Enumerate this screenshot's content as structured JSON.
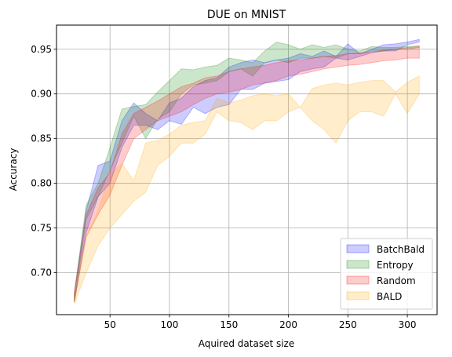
{
  "chart_data": {
    "type": "area",
    "title": "DUE on MNIST",
    "xlabel": "Aquired dataset size",
    "ylabel": "Accuracy",
    "xlim": [
      5,
      325
    ],
    "ylim": [
      0.653,
      0.977
    ],
    "xticks": [
      50,
      100,
      150,
      200,
      250,
      300
    ],
    "yticks": [
      0.7,
      0.75,
      0.8,
      0.85,
      0.9,
      0.95
    ],
    "ytick_labels": [
      "0.70",
      "0.75",
      "0.80",
      "0.85",
      "0.90",
      "0.95"
    ],
    "grid": true,
    "legend_position": "lower-right",
    "x": [
      20,
      30,
      40,
      50,
      60,
      70,
      80,
      90,
      100,
      110,
      120,
      130,
      140,
      150,
      160,
      170,
      180,
      190,
      200,
      210,
      220,
      230,
      240,
      250,
      260,
      270,
      280,
      290,
      300,
      310
    ],
    "series": [
      {
        "name": "BatchBald",
        "color": "#0000ff",
        "lower": [
          0.667,
          0.745,
          0.785,
          0.8,
          0.84,
          0.865,
          0.865,
          0.86,
          0.87,
          0.866,
          0.885,
          0.878,
          0.885,
          0.888,
          0.905,
          0.905,
          0.912,
          0.914,
          0.916,
          0.925,
          0.928,
          0.93,
          0.94,
          0.938,
          0.942,
          0.946,
          0.948,
          0.948,
          0.955,
          0.958
        ],
        "upper": [
          0.677,
          0.77,
          0.82,
          0.825,
          0.87,
          0.89,
          0.878,
          0.87,
          0.89,
          0.895,
          0.908,
          0.915,
          0.918,
          0.93,
          0.935,
          0.938,
          0.935,
          0.938,
          0.94,
          0.945,
          0.942,
          0.948,
          0.942,
          0.956,
          0.945,
          0.95,
          0.955,
          0.956,
          0.958,
          0.961
        ]
      },
      {
        "name": "Entropy",
        "color": "#008000",
        "lower": [
          0.668,
          0.76,
          0.785,
          0.815,
          0.845,
          0.875,
          0.85,
          0.872,
          0.88,
          0.9,
          0.91,
          0.912,
          0.915,
          0.925,
          0.928,
          0.92,
          0.935,
          0.938,
          0.935,
          0.94,
          0.94,
          0.942,
          0.94,
          0.945,
          0.945,
          0.948,
          0.948,
          0.95,
          0.95,
          0.952
        ],
        "upper": [
          0.678,
          0.776,
          0.8,
          0.84,
          0.883,
          0.886,
          0.888,
          0.902,
          0.915,
          0.928,
          0.927,
          0.93,
          0.932,
          0.94,
          0.938,
          0.935,
          0.948,
          0.958,
          0.955,
          0.95,
          0.955,
          0.952,
          0.955,
          0.95,
          0.948,
          0.953,
          0.952,
          0.952,
          0.953,
          0.954
        ]
      },
      {
        "name": "Random",
        "color": "#ff0000",
        "lower": [
          0.667,
          0.74,
          0.765,
          0.787,
          0.82,
          0.85,
          0.86,
          0.87,
          0.875,
          0.88,
          0.888,
          0.895,
          0.9,
          0.902,
          0.905,
          0.91,
          0.912,
          0.915,
          0.92,
          0.922,
          0.925,
          0.928,
          0.93,
          0.932,
          0.933,
          0.935,
          0.937,
          0.938,
          0.94,
          0.94
        ],
        "upper": [
          0.677,
          0.765,
          0.795,
          0.812,
          0.855,
          0.878,
          0.885,
          0.892,
          0.9,
          0.908,
          0.912,
          0.918,
          0.92,
          0.925,
          0.928,
          0.93,
          0.932,
          0.935,
          0.937,
          0.938,
          0.94,
          0.942,
          0.943,
          0.945,
          0.946,
          0.947,
          0.949,
          0.95,
          0.952,
          0.953
        ]
      },
      {
        "name": "BALD",
        "color": "#ffa500",
        "lower": [
          0.665,
          0.7,
          0.73,
          0.75,
          0.765,
          0.78,
          0.79,
          0.82,
          0.83,
          0.845,
          0.845,
          0.855,
          0.88,
          0.87,
          0.868,
          0.86,
          0.87,
          0.87,
          0.88,
          0.885,
          0.87,
          0.86,
          0.845,
          0.87,
          0.88,
          0.88,
          0.875,
          0.9,
          0.878,
          0.9
        ],
        "upper": [
          0.677,
          0.74,
          0.77,
          0.81,
          0.822,
          0.803,
          0.845,
          0.848,
          0.855,
          0.865,
          0.868,
          0.87,
          0.895,
          0.89,
          0.893,
          0.898,
          0.9,
          0.898,
          0.9,
          0.885,
          0.906,
          0.91,
          0.912,
          0.91,
          0.913,
          0.915,
          0.915,
          0.902,
          0.913,
          0.92
        ]
      }
    ]
  }
}
